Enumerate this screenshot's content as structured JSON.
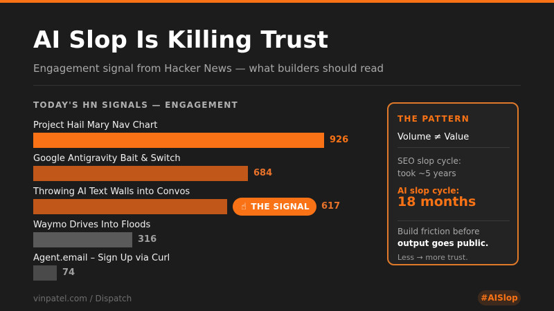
{
  "title": "AI Slop Is Killing Trust",
  "subtitle": "Engagement signal from Hacker News — what builders should read",
  "section_label": "TODAY'S HN SIGNALS — ENGAGEMENT",
  "chart_data": {
    "type": "bar",
    "orientation": "horizontal",
    "title": "TODAY'S HN SIGNALS — ENGAGEMENT",
    "categories": [
      "Project Hail Mary Nav Chart",
      "Google Antigravity Bait & Switch",
      "Throwing AI Text Walls into Convos",
      "Waymo Drives Into Floods",
      "Agent.email – Sign Up via Curl"
    ],
    "values": [
      926,
      684,
      617,
      316,
      74
    ],
    "highlight_index": 2,
    "highlight_label": "THE SIGNAL",
    "xlim": [
      0,
      926
    ],
    "grid": false,
    "colors": [
      "#f97316",
      "#c2571a",
      "#c2571a",
      "#5a5a5a",
      "#4a4a4a"
    ],
    "value_colors": [
      "#f97316",
      "#e8722a",
      "#e8722a",
      "#a0a0a0",
      "#a0a0a0"
    ]
  },
  "panel": {
    "title": "THE PATTERN",
    "headline": "Volume ≠ Value",
    "seo_line1": "SEO slop cycle:",
    "seo_line2": "took ~5 years",
    "ai_label": "AI slop cycle:",
    "ai_value": "18 months",
    "friction_line1": "Build friction before",
    "friction_line2": "output goes public.",
    "tagline": "Less → more trust."
  },
  "footer": {
    "source": "vinpatel.com / Dispatch",
    "hashtag": "#AISlop"
  },
  "colors": {
    "background": "#1c1c1c",
    "accent": "#f97316"
  }
}
